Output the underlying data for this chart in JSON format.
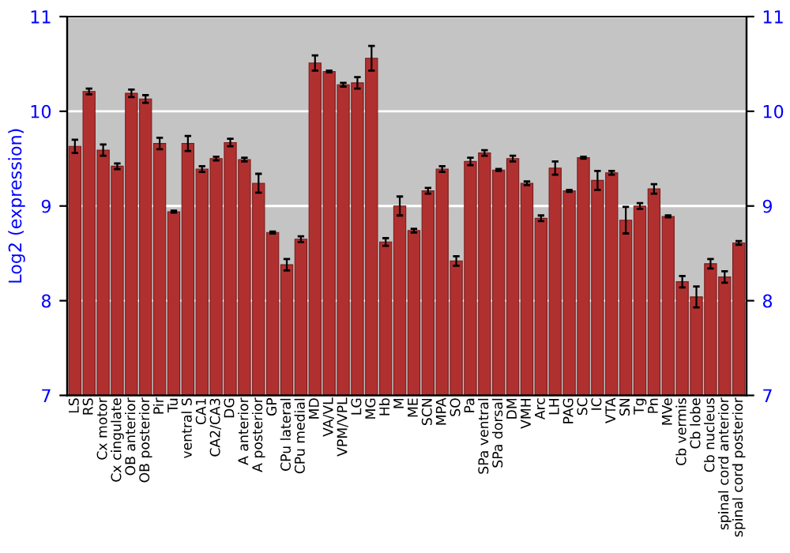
{
  "chart_data": {
    "type": "bar",
    "ylabel": "Log2 (expression)",
    "categories": [
      "LS",
      "RS",
      "Cx motor",
      "Cx cingulate",
      "OB anterior",
      "OB posterior",
      "Pir",
      "Tu",
      "ventral S",
      "CA1",
      "CA2/CA3",
      "DG",
      "A anterior",
      "A posterior",
      "GP",
      "CPu lateral",
      "CPu medial",
      "MD",
      "VA/VL",
      "VPM/VPL",
      "LG",
      "MG",
      "Hb",
      "M",
      "ME",
      "SCN",
      "MPA",
      "SO",
      "Pa",
      "SPa ventral",
      "SPa dorsal",
      "DM",
      "VMH",
      "Arc",
      "LH",
      "PAG",
      "SC",
      "IC",
      "VTA",
      "SN",
      "Tg",
      "Pn",
      "MVe",
      "Cb vermis",
      "Cb lobe",
      "Cb nucleus",
      "spinal cord anterior",
      "spinal cord posterior"
    ],
    "values": [
      9.63,
      10.21,
      9.59,
      9.42,
      10.19,
      10.13,
      9.66,
      8.94,
      9.66,
      9.39,
      9.5,
      9.67,
      9.49,
      9.24,
      8.72,
      8.38,
      8.65,
      10.51,
      10.42,
      10.28,
      10.3,
      10.56,
      8.62,
      9.0,
      8.74,
      9.16,
      9.39,
      8.42,
      9.47,
      9.56,
      9.38,
      9.5,
      9.24,
      8.87,
      9.4,
      9.16,
      9.51,
      9.27,
      9.35,
      8.85,
      9.0,
      9.18,
      8.89,
      8.2,
      8.04,
      8.39,
      8.25,
      8.61
    ],
    "errors": [
      0.07,
      0.03,
      0.06,
      0.03,
      0.04,
      0.04,
      0.06,
      0.01,
      0.08,
      0.03,
      0.02,
      0.04,
      0.02,
      0.1,
      0.01,
      0.06,
      0.03,
      0.08,
      0.01,
      0.02,
      0.06,
      0.13,
      0.04,
      0.1,
      0.02,
      0.03,
      0.03,
      0.05,
      0.04,
      0.03,
      0.01,
      0.03,
      0.02,
      0.03,
      0.07,
      0.01,
      0.01,
      0.1,
      0.02,
      0.14,
      0.03,
      0.05,
      0.01,
      0.06,
      0.11,
      0.05,
      0.06,
      0.02
    ],
    "color": "#b03030",
    "ylim": [
      7,
      11
    ],
    "yticks": [
      7,
      8,
      9,
      10,
      11
    ],
    "y2lim": [
      7,
      11
    ],
    "y2ticks": [
      7,
      8,
      9,
      10,
      11
    ],
    "grid": "y",
    "legend": false
  }
}
